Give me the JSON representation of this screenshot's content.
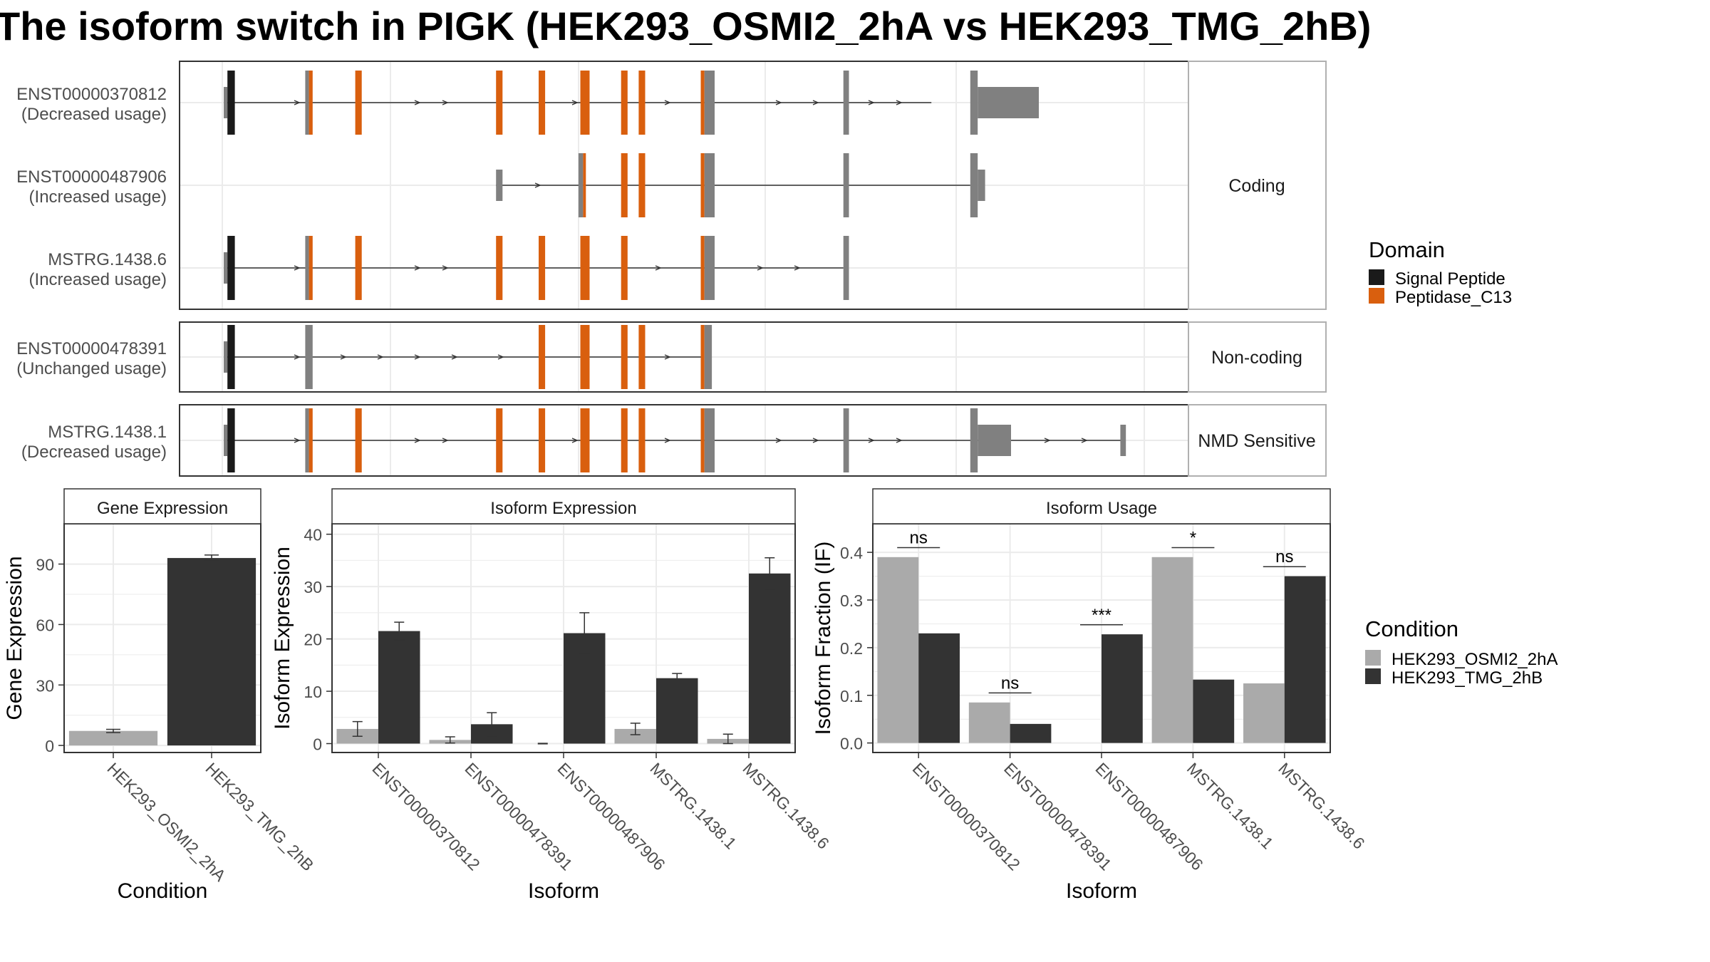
{
  "title": "The isoform switch in PIGK (HEK293_OSMI2_2hA vs HEK293_TMG_2hB)",
  "colors": {
    "signal_peptide": "#1a1a1a",
    "peptidase": "#d95f0e",
    "exon": "#808080",
    "cond_a": "#aaaaaa",
    "cond_b": "#333333",
    "panel_border": "#333333",
    "strip_border": "#b0b0b0",
    "grid": "#ebebeb"
  },
  "structure": {
    "x_range": [
      0,
      1000
    ],
    "groups": [
      {
        "label": "Coding",
        "isoforms": [
          {
            "id": "ENST00000370812",
            "usage": "(Decreased usage)",
            "line": [
              2,
              764
            ],
            "exons": [
              [
                0,
                4,
                "utr",
                "exon"
              ],
              [
                4,
                12,
                "cds",
                "signal"
              ],
              [
                88,
                92,
                "cds",
                "exon"
              ],
              [
                92,
                96,
                "cds",
                "peptidase"
              ],
              [
                142,
                149,
                "cds",
                "peptidase"
              ],
              [
                294,
                301,
                "cds",
                "peptidase"
              ],
              [
                340,
                347,
                "cds",
                "peptidase"
              ],
              [
                385,
                395,
                "cds",
                "peptidase"
              ],
              [
                429,
                436,
                "cds",
                "peptidase"
              ],
              [
                448,
                455,
                "cds",
                "peptidase"
              ],
              [
                515,
                519,
                "cds",
                "peptidase"
              ],
              [
                519,
                530,
                "cds",
                "exon"
              ],
              [
                669,
                675,
                "cds",
                "exon"
              ],
              [
                806,
                814,
                "cds",
                "exon"
              ],
              [
                814,
                880,
                "utr",
                "exon"
              ]
            ],
            "arrows": [
              80,
              210,
              240,
              380,
              480,
              600,
              640,
              700,
              730
            ]
          },
          {
            "id": "ENST00000487906",
            "usage": "(Increased usage)",
            "line": [
              294,
              806
            ],
            "exons": [
              [
                294,
                301,
                "utr",
                "exon"
              ],
              [
                383,
                388,
                "cds",
                "exon"
              ],
              [
                388,
                391,
                "cds",
                "peptidase"
              ],
              [
                429,
                436,
                "cds",
                "peptidase"
              ],
              [
                448,
                455,
                "cds",
                "peptidase"
              ],
              [
                515,
                519,
                "cds",
                "peptidase"
              ],
              [
                519,
                530,
                "cds",
                "exon"
              ],
              [
                669,
                675,
                "cds",
                "exon"
              ],
              [
                806,
                814,
                "cds",
                "exon"
              ],
              [
                814,
                822,
                "utr",
                "exon"
              ]
            ],
            "arrows": [
              340
            ]
          },
          {
            "id": "MSTRG.1438.6",
            "usage": "(Increased usage)",
            "line": [
              2,
              669
            ],
            "exons": [
              [
                0,
                4,
                "utr",
                "exon"
              ],
              [
                4,
                12,
                "cds",
                "signal"
              ],
              [
                88,
                92,
                "cds",
                "exon"
              ],
              [
                92,
                96,
                "cds",
                "peptidase"
              ],
              [
                142,
                149,
                "cds",
                "peptidase"
              ],
              [
                294,
                301,
                "cds",
                "peptidase"
              ],
              [
                340,
                347,
                "cds",
                "peptidase"
              ],
              [
                385,
                395,
                "cds",
                "peptidase"
              ],
              [
                429,
                436,
                "cds",
                "peptidase"
              ],
              [
                515,
                519,
                "cds",
                "peptidase"
              ],
              [
                519,
                530,
                "cds",
                "exon"
              ],
              [
                669,
                675,
                "cds",
                "exon"
              ]
            ],
            "arrows": [
              80,
              210,
              240,
              470,
              580,
              620
            ]
          }
        ]
      },
      {
        "label": "Non-coding",
        "isoforms": [
          {
            "id": "ENST00000478391",
            "usage": "(Unchanged usage)",
            "line": [
              2,
              515
            ],
            "exons": [
              [
                0,
                4,
                "utr",
                "exon"
              ],
              [
                4,
                12,
                "cds",
                "signal"
              ],
              [
                88,
                96,
                "cds",
                "exon"
              ],
              [
                340,
                347,
                "cds",
                "peptidase"
              ],
              [
                385,
                395,
                "cds",
                "peptidase"
              ],
              [
                429,
                436,
                "cds",
                "peptidase"
              ],
              [
                448,
                455,
                "cds",
                "peptidase"
              ],
              [
                515,
                519,
                "cds",
                "peptidase"
              ],
              [
                519,
                527,
                "cds",
                "exon"
              ]
            ],
            "arrows": [
              80,
              130,
              170,
              210,
              250,
              300,
              480
            ]
          }
        ]
      },
      {
        "label": "NMD Sensitive",
        "isoforms": [
          {
            "id": "MSTRG.1438.1",
            "usage": "(Decreased usage)",
            "line": [
              2,
              972
            ],
            "exons": [
              [
                0,
                4,
                "utr",
                "exon"
              ],
              [
                4,
                12,
                "cds",
                "signal"
              ],
              [
                88,
                92,
                "cds",
                "exon"
              ],
              [
                92,
                96,
                "cds",
                "peptidase"
              ],
              [
                142,
                149,
                "cds",
                "peptidase"
              ],
              [
                294,
                301,
                "cds",
                "peptidase"
              ],
              [
                340,
                347,
                "cds",
                "peptidase"
              ],
              [
                385,
                395,
                "cds",
                "peptidase"
              ],
              [
                429,
                436,
                "cds",
                "peptidase"
              ],
              [
                448,
                455,
                "cds",
                "peptidase"
              ],
              [
                515,
                519,
                "cds",
                "peptidase"
              ],
              [
                519,
                530,
                "cds",
                "exon"
              ],
              [
                669,
                675,
                "cds",
                "exon"
              ],
              [
                806,
                814,
                "cds",
                "exon"
              ],
              [
                814,
                850,
                "utr",
                "exon"
              ],
              [
                968,
                974,
                "utr",
                "exon"
              ]
            ],
            "arrows": [
              80,
              210,
              240,
              380,
              480,
              600,
              640,
              700,
              730,
              890,
              930
            ]
          }
        ]
      }
    ]
  },
  "legend_domain": {
    "title": "Domain",
    "items": [
      "Signal Peptide",
      "Peptidase_C13"
    ]
  },
  "legend_condition": {
    "title": "Condition",
    "items": [
      "HEK293_OSMI2_2hA",
      "HEK293_TMG_2hB"
    ]
  },
  "chart_data": [
    {
      "type": "bar",
      "title": "Gene Expression",
      "xlabel": "Condition",
      "ylabel": "Gene Expression",
      "ylim": [
        -3.5,
        110
      ],
      "yticks": [
        0,
        30,
        60,
        90
      ],
      "grid": true,
      "categories": [
        "HEK293_OSMI2_2hA",
        "HEK293_TMG_2hB"
      ],
      "values": [
        7.2,
        93
      ],
      "errors": [
        0.8,
        1.5
      ]
    },
    {
      "type": "bar",
      "title": "Isoform Expression",
      "xlabel": "Isoform",
      "ylabel": "Isoform Expression",
      "ylim": [
        -1.7,
        42
      ],
      "yticks": [
        0,
        10,
        20,
        30,
        40
      ],
      "grid": true,
      "categories": [
        "ENST00000370812",
        "ENST00000478391",
        "ENST00000487906",
        "MSTRG.1438.1",
        "MSTRG.1438.6"
      ],
      "series": [
        {
          "name": "HEK293_OSMI2_2hA",
          "values": [
            2.8,
            0.7,
            0.0,
            2.8,
            0.9
          ],
          "errors": [
            1.4,
            0.6,
            0.05,
            1.1,
            0.9
          ]
        },
        {
          "name": "HEK293_TMG_2hB",
          "values": [
            21.5,
            3.7,
            21.1,
            12.5,
            32.5
          ],
          "errors": [
            1.7,
            2.2,
            3.9,
            0.9,
            3.0
          ]
        }
      ]
    },
    {
      "type": "bar",
      "title": "Isoform Usage",
      "xlabel": "Isoform",
      "ylabel": "Isoform Fraction (IF)",
      "ylim": [
        -0.02,
        0.46
      ],
      "yticks": [
        "0.0",
        "0.1",
        "0.2",
        "0.3",
        "0.4"
      ],
      "grid": true,
      "categories": [
        "ENST00000370812",
        "ENST00000478391",
        "ENST00000487906",
        "MSTRG.1438.1",
        "MSTRG.1438.6"
      ],
      "series": [
        {
          "name": "HEK293_OSMI2_2hA",
          "values": [
            0.39,
            0.085,
            0.0,
            0.39,
            0.125
          ]
        },
        {
          "name": "HEK293_TMG_2hB",
          "values": [
            0.23,
            0.04,
            0.228,
            0.133,
            0.35
          ]
        }
      ],
      "annotations": [
        "ns",
        "ns",
        "***",
        "*",
        "ns"
      ],
      "annotation_levels": [
        0.41,
        0.105,
        0.248,
        0.41,
        0.37
      ]
    }
  ]
}
